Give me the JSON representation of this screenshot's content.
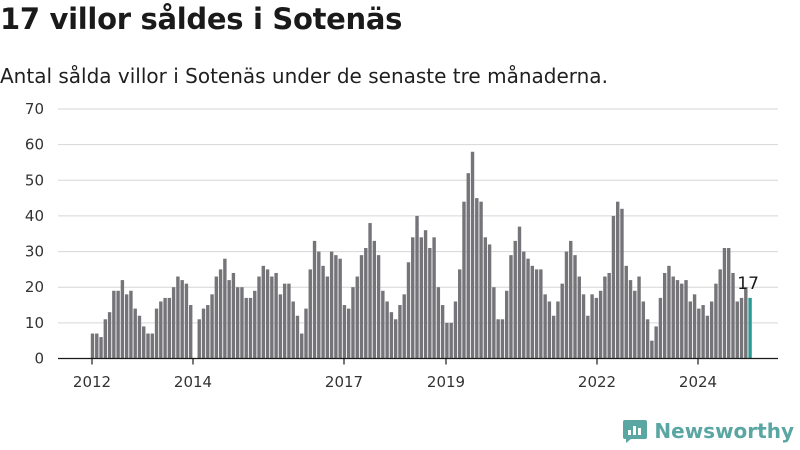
{
  "title": "17 villor såldes i Sotenäs",
  "subtitle": "Antal sålda villor i Sotenäs under de senaste tre månaderna.",
  "brand": "Newsworthy",
  "colors": {
    "bar": "#757478",
    "highlight": "#2a9a92",
    "grid": "#d6d6d6",
    "axis": "#1a1a1a",
    "brand": "#5aa6a3"
  },
  "chart_data": {
    "type": "bar",
    "title": "17 villor såldes i Sotenäs",
    "subtitle": "Antal sålda villor i Sotenäs under de senaste tre månaderna.",
    "xlabel": "",
    "ylabel": "",
    "ylim": [
      0,
      70
    ],
    "yticks": [
      0,
      10,
      20,
      30,
      40,
      50,
      60,
      70
    ],
    "xticks": [
      "2012",
      "2014",
      "2017",
      "2019",
      "2022",
      "2024"
    ],
    "grid": "horizontal",
    "legend": "none",
    "highlight_label": "17",
    "values": [
      7,
      7,
      6,
      11,
      13,
      19,
      19,
      22,
      18,
      19,
      14,
      12,
      9,
      7,
      7,
      14,
      16,
      17,
      17,
      20,
      23,
      22,
      21,
      15,
      0,
      11,
      14,
      15,
      18,
      23,
      25,
      28,
      22,
      24,
      20,
      20,
      17,
      17,
      19,
      23,
      26,
      25,
      23,
      24,
      18,
      21,
      21,
      16,
      12,
      7,
      14,
      25,
      33,
      30,
      26,
      23,
      30,
      29,
      28,
      15,
      14,
      20,
      23,
      29,
      31,
      38,
      33,
      29,
      19,
      16,
      13,
      11,
      15,
      18,
      27,
      34,
      40,
      34,
      36,
      31,
      34,
      20,
      15,
      10,
      10,
      16,
      25,
      44,
      52,
      58,
      45,
      44,
      34,
      32,
      20,
      11,
      11,
      19,
      29,
      33,
      37,
      30,
      28,
      26,
      25,
      25,
      18,
      16,
      12,
      16,
      21,
      30,
      33,
      29,
      23,
      18,
      12,
      18,
      17,
      19,
      23,
      24,
      40,
      44,
      42,
      26,
      22,
      19,
      23,
      16,
      11,
      5,
      9,
      17,
      24,
      26,
      23,
      22,
      21,
      22,
      16,
      18,
      14,
      15,
      12,
      16,
      21,
      25,
      31,
      31,
      24,
      16,
      17,
      20,
      17
    ]
  }
}
